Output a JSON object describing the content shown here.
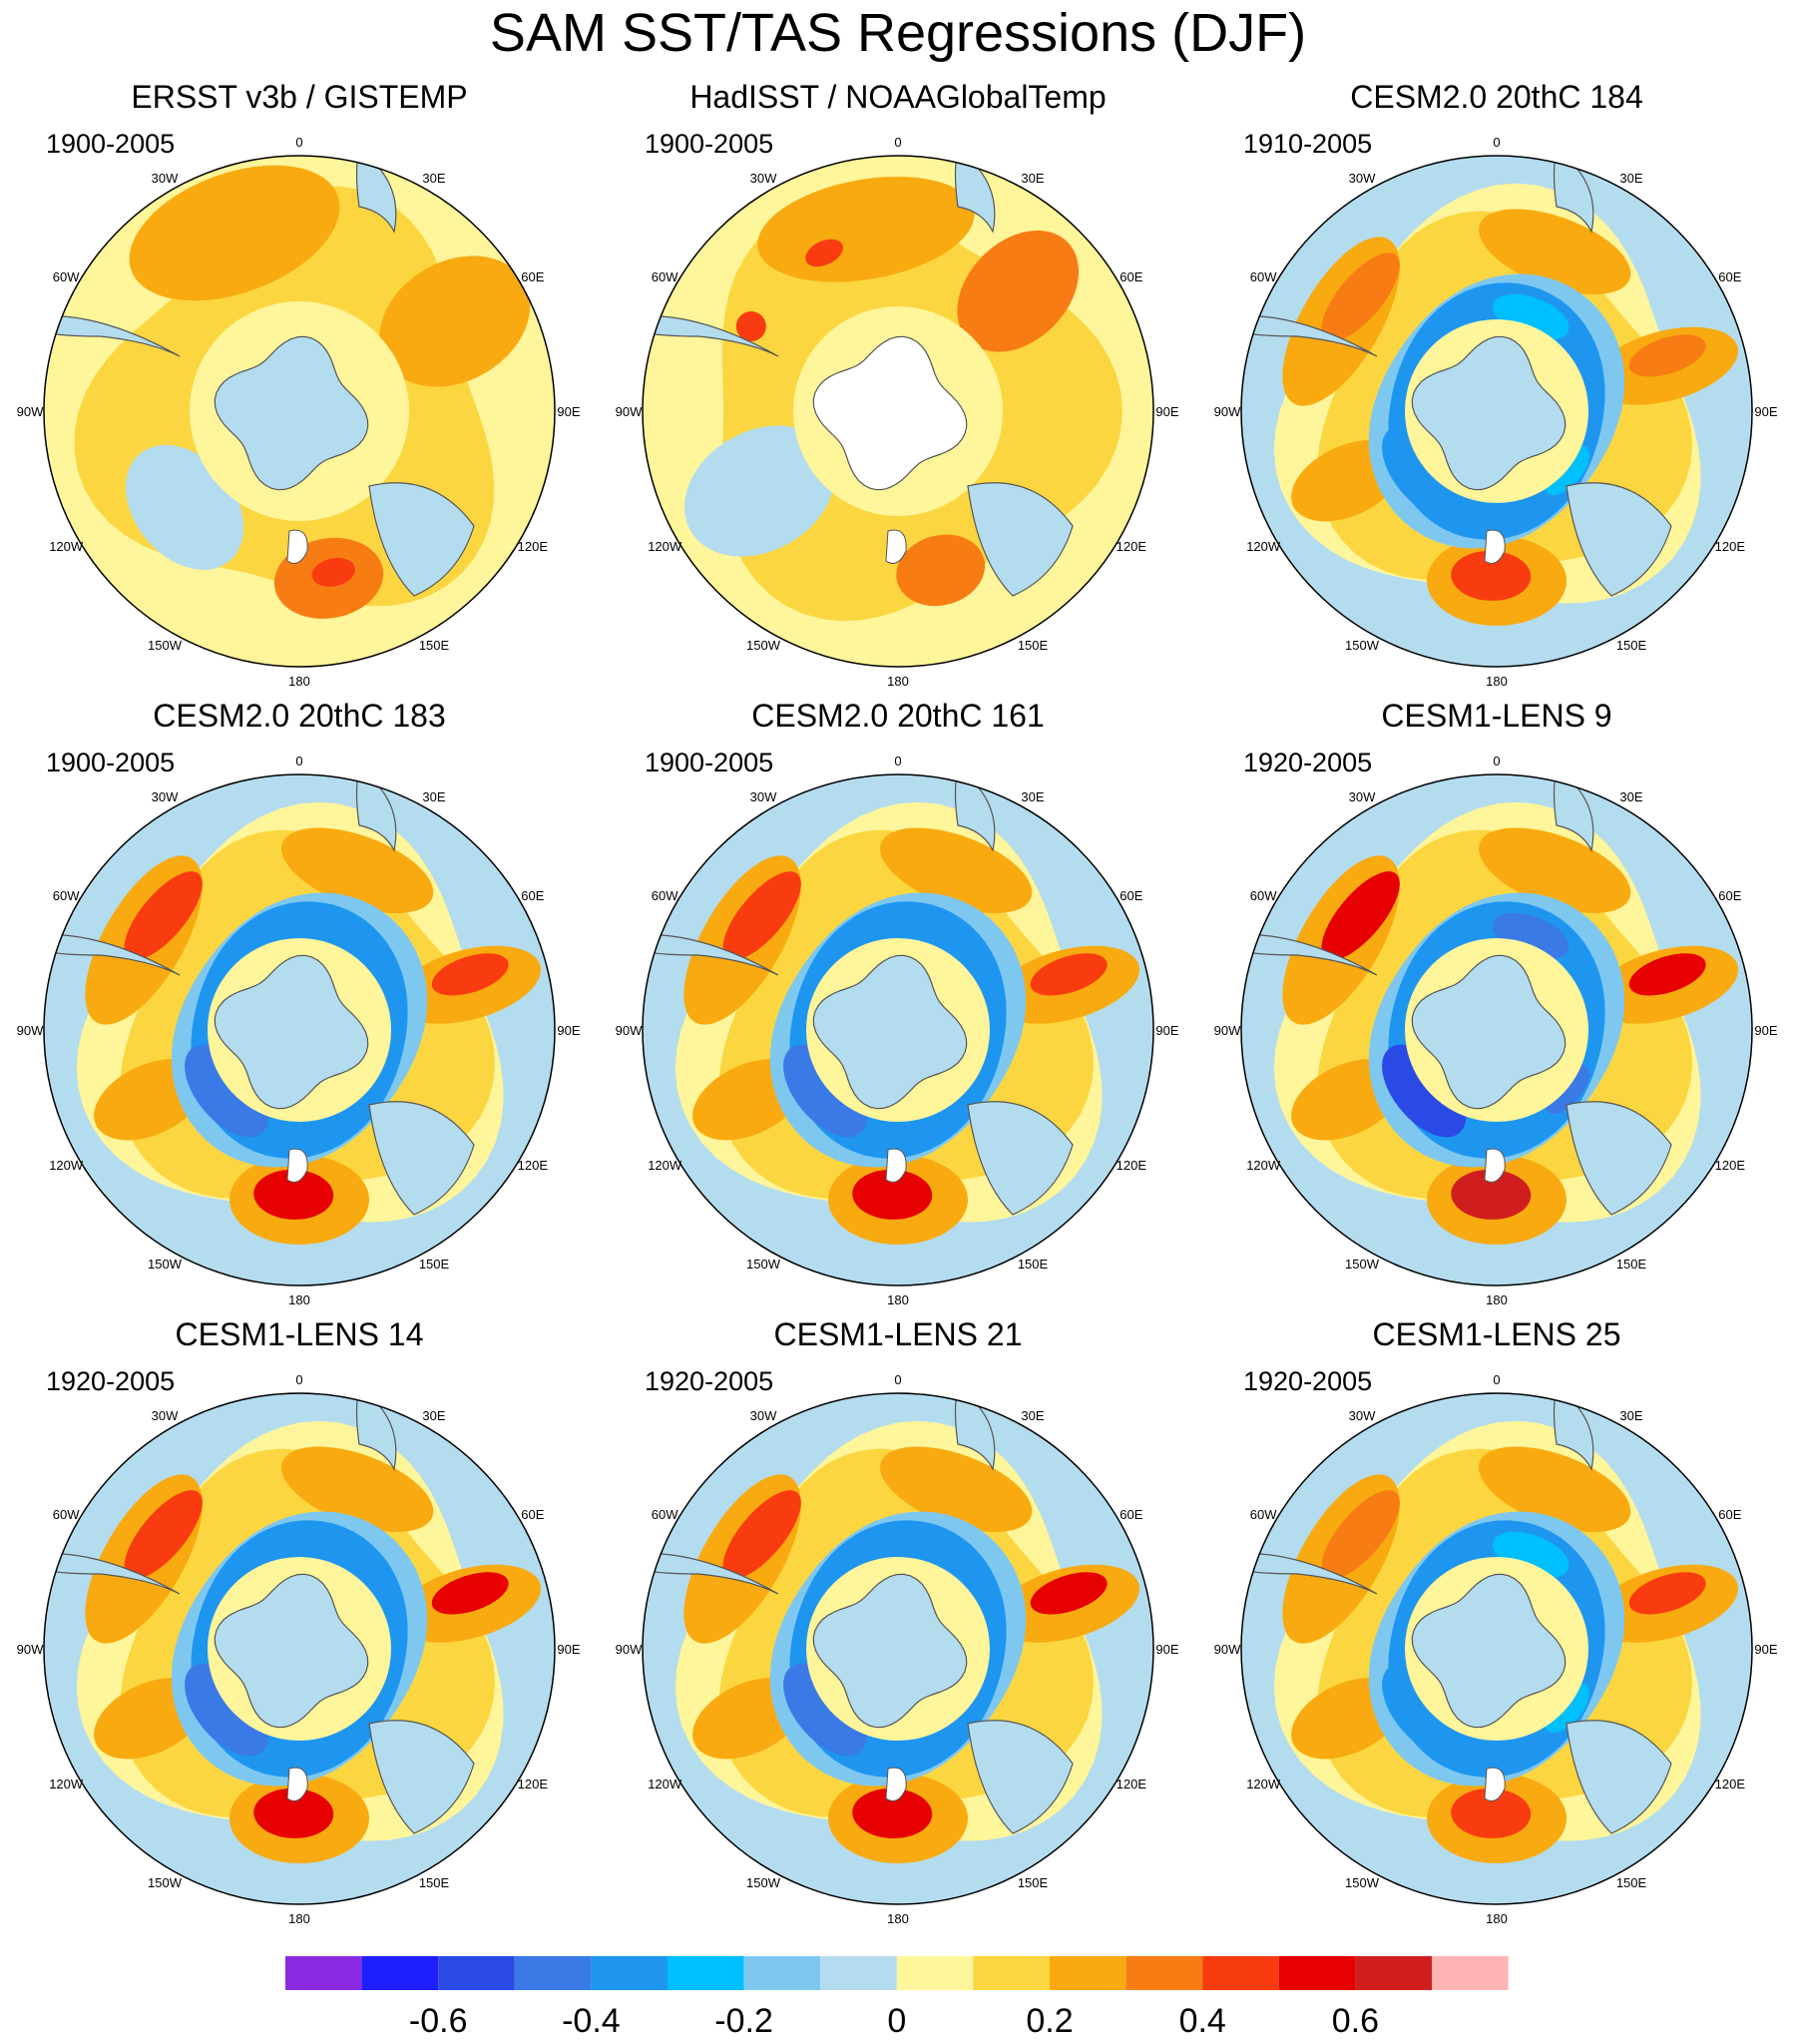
{
  "title": "SAM SST/TAS Regressions (DJF)",
  "longitude_labels": [
    "0",
    "30E",
    "60E",
    "90E",
    "120E",
    "150E",
    "180",
    "150W",
    "120W",
    "90W",
    "60W",
    "30W"
  ],
  "panels": [
    {
      "title": "ERSST v3b / GISTEMP",
      "period": "1900-2005",
      "pattern": "obs",
      "strength": 0.35
    },
    {
      "title": "HadISST / NOAAGlobalTemp",
      "period": "1900-2005",
      "pattern": "obs2",
      "strength": 0.4
    },
    {
      "title": "CESM2.0 20thC 184",
      "period": "1910-2005",
      "pattern": "model",
      "strength": 0.4
    },
    {
      "title": "CESM2.0 20thC 183",
      "period": "1900-2005",
      "pattern": "model",
      "strength": 0.5
    },
    {
      "title": "CESM2.0 20thC 161",
      "period": "1900-2005",
      "pattern": "model",
      "strength": 0.5
    },
    {
      "title": "CESM1-LENS 9",
      "period": "1920-2005",
      "pattern": "model",
      "strength": 0.62
    },
    {
      "title": "CESM1-LENS 14",
      "period": "1920-2005",
      "pattern": "model",
      "strength": 0.55
    },
    {
      "title": "CESM1-LENS 21",
      "period": "1920-2005",
      "pattern": "model",
      "strength": 0.55
    },
    {
      "title": "CESM1-LENS 25",
      "period": "1920-2005",
      "pattern": "model",
      "strength": 0.45
    }
  ],
  "colorbar": {
    "colors": [
      "#8a2be2",
      "#1e1eff",
      "#2a4ae6",
      "#3a7ae6",
      "#1e96f0",
      "#00bfff",
      "#7ec8f0",
      "#b4dcef",
      "#fff59a",
      "#fcd640",
      "#f8aa10",
      "#f87c14",
      "#f83c10",
      "#e60000",
      "#d01e1e",
      "#ffb4b4"
    ],
    "tick_labels": [
      "-0.6",
      "-0.4",
      "-0.2",
      "0",
      "0.2",
      "0.4",
      "0.6"
    ]
  },
  "land_color": "#b4dcef"
}
